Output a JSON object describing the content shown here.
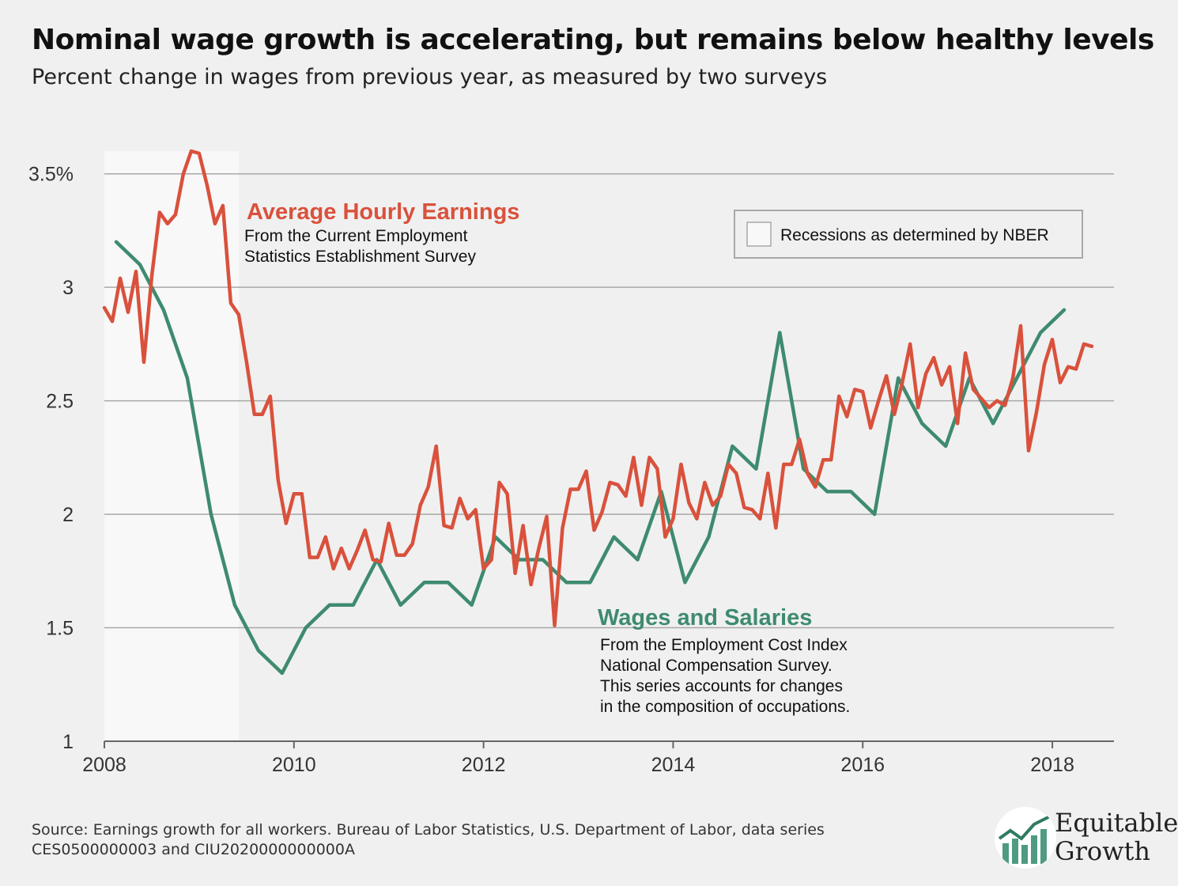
{
  "title": "Nominal wage growth is accelerating, but remains below healthy levels",
  "subtitle": "Percent change in wages from previous year, as measured by two surveys",
  "source": "Source: Earnings growth for all workers. Bureau of Labor Statistics, U.S. Department of Labor, data series CES0500000003 and CIU2020000000000A",
  "logo": {
    "line1": "Equitable",
    "line2": "Growth"
  },
  "colors": {
    "ahe": "#d9513c",
    "wages": "#3e8b6f",
    "recession": "#f8f8f8",
    "grid": "#a8a8a8",
    "background": "#f0f0f0"
  },
  "chart_data": {
    "type": "line",
    "xlim": [
      2008,
      2018.65
    ],
    "ylim": [
      1,
      3.6
    ],
    "xticks": [
      2008,
      2010,
      2012,
      2014,
      2016,
      2018
    ],
    "yticks": [
      {
        "value": 1,
        "label": "1"
      },
      {
        "value": 1.5,
        "label": "1.5"
      },
      {
        "value": 2,
        "label": "2"
      },
      {
        "value": 2.5,
        "label": "2.5"
      },
      {
        "value": 3,
        "label": "3"
      },
      {
        "value": 3.5,
        "label": "3.5%"
      }
    ],
    "grid": true,
    "recession": {
      "start": 2008.0,
      "end": 2009.42,
      "label": "Recessions as determined by NBER"
    },
    "legend_position": "top-right",
    "annotations": {
      "ahe": {
        "title": "Average Hourly Earnings",
        "lines": [
          "From the Current Employment",
          "Statistics Establishment Survey"
        ]
      },
      "wages": {
        "title": "Wages and Salaries",
        "lines": [
          "From the Employment Cost Index",
          "National Compensation Survey.",
          "This series accounts for changes",
          "in the composition of occupations."
        ]
      }
    },
    "series": [
      {
        "key": "ahe",
        "start": 2008.0,
        "step": 0.08333,
        "values": [
          2.91,
          2.85,
          3.04,
          2.89,
          3.07,
          2.67,
          3.05,
          3.33,
          3.28,
          3.32,
          3.5,
          3.6,
          3.59,
          3.45,
          3.28,
          3.36,
          2.93,
          2.88,
          2.67,
          2.44,
          2.44,
          2.52,
          2.15,
          1.96,
          2.09,
          2.09,
          1.81,
          1.81,
          1.9,
          1.76,
          1.85,
          1.76,
          1.84,
          1.93,
          1.8,
          1.79,
          1.96,
          1.82,
          1.82,
          1.87,
          2.04,
          2.12,
          2.3,
          1.95,
          1.94,
          2.07,
          1.98,
          2.02,
          1.76,
          1.8,
          2.14,
          2.09,
          1.74,
          1.95,
          1.69,
          1.85,
          1.99,
          1.51,
          1.94,
          2.11,
          2.11,
          2.19,
          1.93,
          2.01,
          2.14,
          2.13,
          2.08,
          2.25,
          2.04,
          2.25,
          2.2,
          1.9,
          1.98,
          2.22,
          2.05,
          1.98,
          2.14,
          2.04,
          2.08,
          2.22,
          2.18,
          2.03,
          2.02,
          1.98,
          2.18,
          1.94,
          2.22,
          2.22,
          2.33,
          2.18,
          2.12,
          2.24,
          2.24,
          2.52,
          2.43,
          2.55,
          2.54,
          2.38,
          2.5,
          2.61,
          2.44,
          2.58,
          2.75,
          2.47,
          2.62,
          2.69,
          2.57,
          2.65,
          2.4,
          2.71,
          2.55,
          2.51,
          2.47,
          2.5,
          2.48,
          2.6,
          2.83,
          2.28,
          2.45,
          2.66,
          2.77,
          2.58,
          2.65,
          2.64,
          2.75,
          2.74
        ]
      },
      {
        "key": "wages",
        "start": 2008.125,
        "step": 0.25,
        "values": [
          3.2,
          3.1,
          2.9,
          2.6,
          2.0,
          1.6,
          1.4,
          1.3,
          1.5,
          1.6,
          1.6,
          1.8,
          1.6,
          1.7,
          1.7,
          1.6,
          1.9,
          1.8,
          1.8,
          1.7,
          1.7,
          1.9,
          1.8,
          2.1,
          1.7,
          1.9,
          2.3,
          2.2,
          2.8,
          2.2,
          2.1,
          2.1,
          2.0,
          2.6,
          2.4,
          2.3,
          2.6,
          2.4,
          2.6,
          2.8,
          2.9
        ]
      }
    ]
  }
}
